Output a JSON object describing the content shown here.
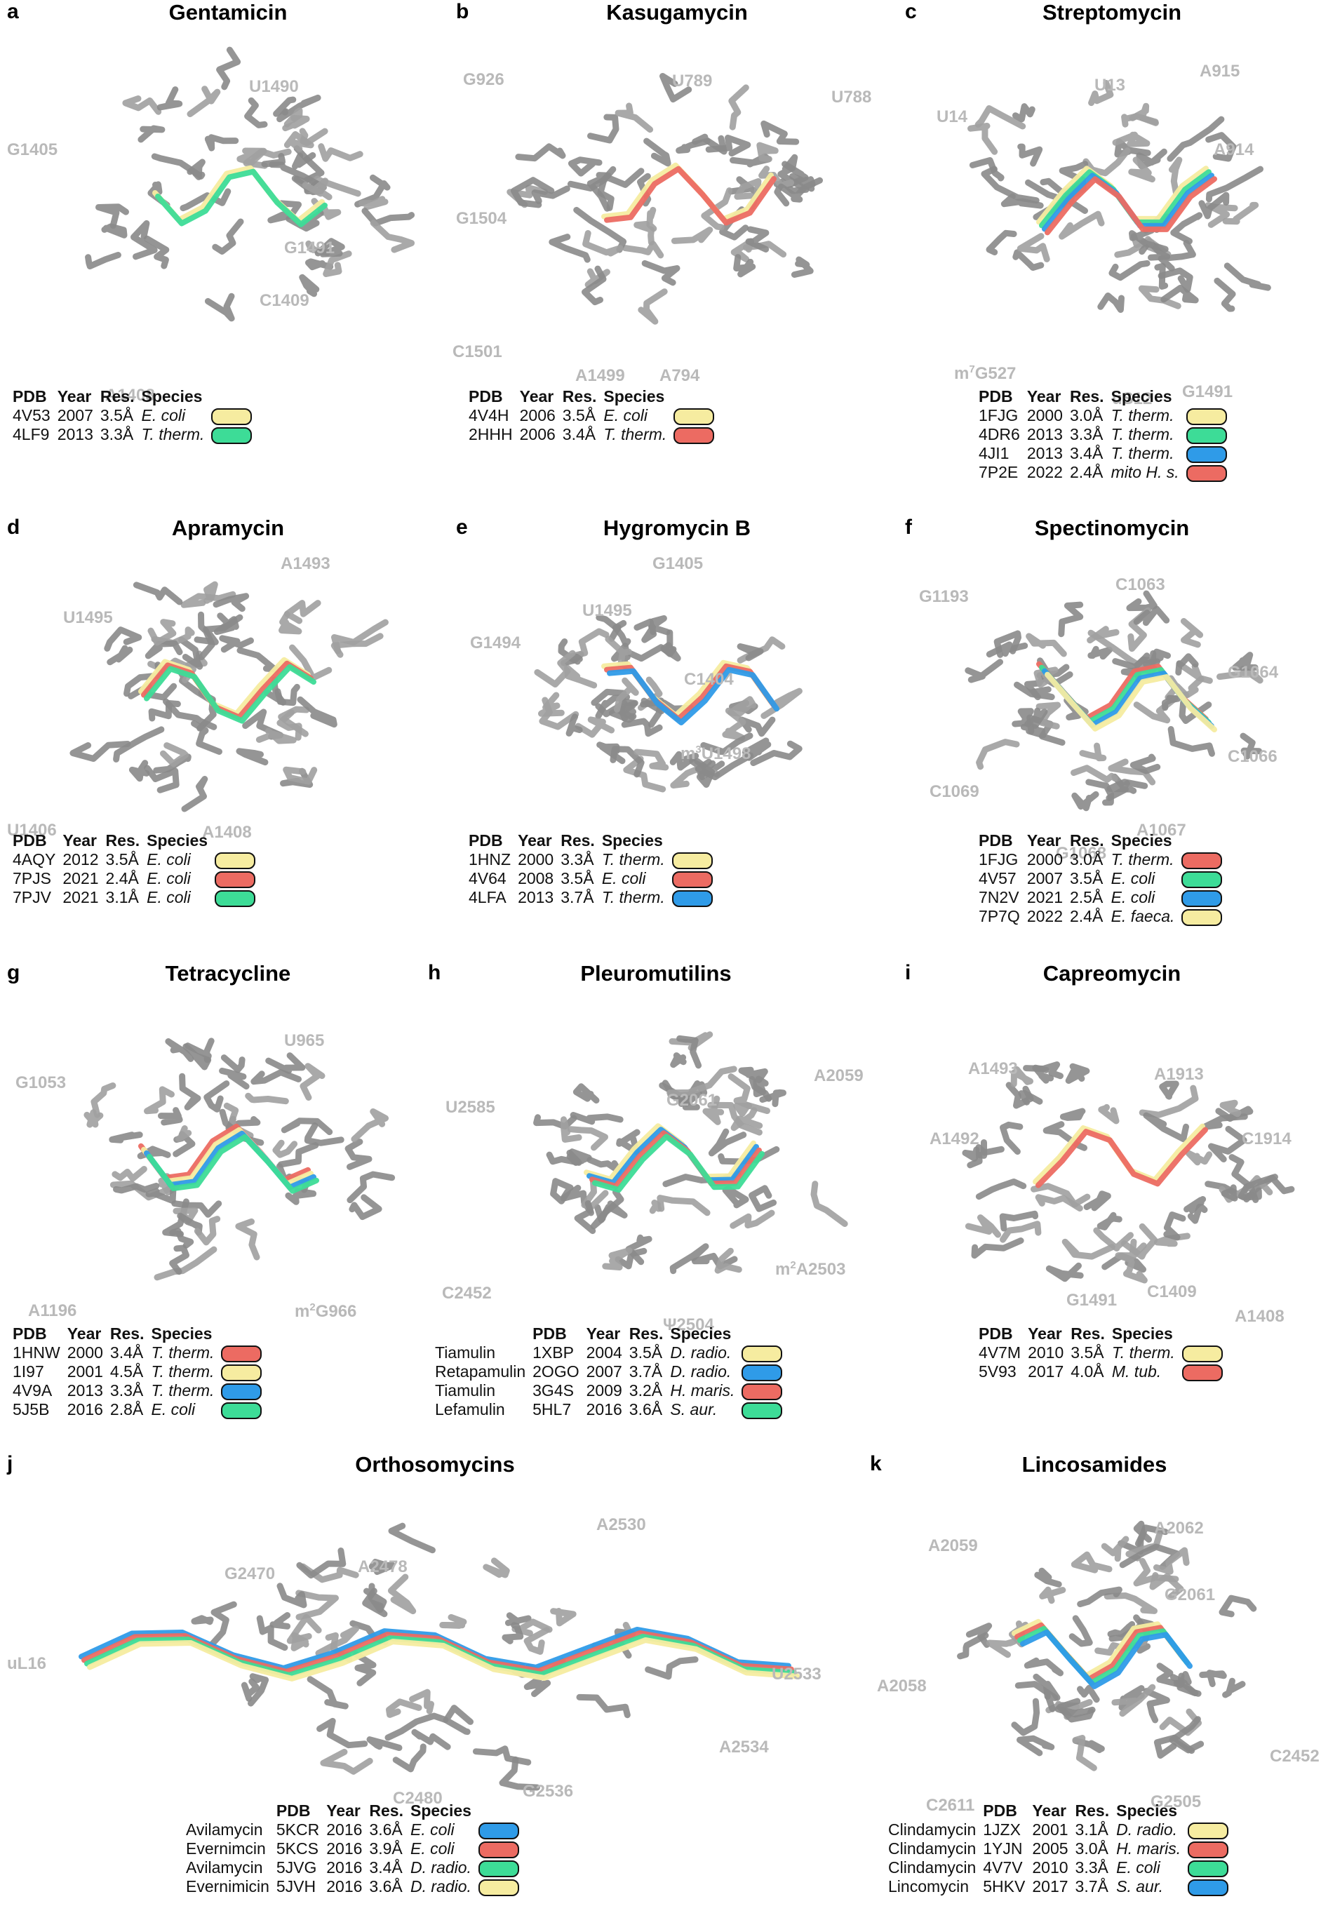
{
  "colors": {
    "yellow": "#f6eca0",
    "green": "#3ddc97",
    "blue": "#2f9be8",
    "red": "#ec6b62",
    "grey_residue": "#8a8a8a",
    "label_grey": "#b9b9b9"
  },
  "legend_headers": {
    "pdb": "PDB",
    "year": "Year",
    "res": "Res.",
    "species": "Species"
  },
  "panels": [
    {
      "id": "a",
      "letter": "a",
      "title": "Gentamicin",
      "residues": [
        "G1405",
        "U1490",
        "G1491",
        "C1409",
        "A1408"
      ],
      "has_name_col": false,
      "entries": [
        {
          "pdb": "4V53",
          "year": "2007",
          "res": "3.5Å",
          "species": "E. coli",
          "color": "yellow"
        },
        {
          "pdb": "4LF9",
          "year": "2013",
          "res": "3.3Å",
          "species": "T. therm.",
          "color": "green"
        }
      ]
    },
    {
      "id": "b",
      "letter": "b",
      "title": "Kasugamycin",
      "residues": [
        "G926",
        "U789",
        "U788",
        "G1504",
        "C1501",
        "A1499",
        "A794"
      ],
      "has_name_col": false,
      "entries": [
        {
          "pdb": "4V4H",
          "year": "2006",
          "res": "3.5Å",
          "species": "E. coli",
          "color": "yellow"
        },
        {
          "pdb": "2HHH",
          "year": "2006",
          "res": "3.4Å",
          "species": "T. therm.",
          "color": "red"
        }
      ]
    },
    {
      "id": "c",
      "letter": "c",
      "title": "Streptomycin",
      "residues": [
        "U14",
        "U13",
        "A915",
        "A914",
        "uS12",
        "G1491"
      ],
      "superscript_residues": [
        {
          "pre": "m",
          "sup": "7",
          "post": "G527"
        }
      ],
      "has_name_col": false,
      "entries": [
        {
          "pdb": "1FJG",
          "year": "2000",
          "res": "3.0Å",
          "species": "T. therm.",
          "color": "yellow"
        },
        {
          "pdb": "4DR6",
          "year": "2013",
          "res": "3.3Å",
          "species": "T. therm.",
          "color": "green"
        },
        {
          "pdb": "4JI1",
          "year": "2013",
          "res": "3.4Å",
          "species": "T. therm.",
          "color": "blue"
        },
        {
          "pdb": "7P2E",
          "year": "2022",
          "res": "2.4Å",
          "species": "mito H. s.",
          "color": "red"
        }
      ]
    },
    {
      "id": "d",
      "letter": "d",
      "title": "Apramycin",
      "residues": [
        "A1493",
        "U1495",
        "U1406",
        "A1408"
      ],
      "has_name_col": false,
      "entries": [
        {
          "pdb": "4AQY",
          "year": "2012",
          "res": "3.5Å",
          "species": "E. coli",
          "color": "yellow"
        },
        {
          "pdb": "7PJS",
          "year": "2021",
          "res": "2.4Å",
          "species": "E. coli",
          "color": "red"
        },
        {
          "pdb": "7PJV",
          "year": "2021",
          "res": "3.1Å",
          "species": "E. coli",
          "color": "green"
        }
      ]
    },
    {
      "id": "e",
      "letter": "e",
      "title": "Hygromycin B",
      "residues": [
        "G1405",
        "U1495",
        "G1494",
        "C1404"
      ],
      "superscript_residues": [
        {
          "pre": "m",
          "sup": "3",
          "post": "U1498"
        }
      ],
      "has_name_col": false,
      "entries": [
        {
          "pdb": "1HNZ",
          "year": "2000",
          "res": "3.3Å",
          "species": "T. therm.",
          "color": "yellow"
        },
        {
          "pdb": "4V64",
          "year": "2008",
          "res": "3.5Å",
          "species": "E. coli",
          "color": "red"
        },
        {
          "pdb": "4LFA",
          "year": "2013",
          "res": "3.7Å",
          "species": "T. therm.",
          "color": "blue"
        }
      ]
    },
    {
      "id": "f",
      "letter": "f",
      "title": "Spectinomycin",
      "residues": [
        "G1193",
        "C1063",
        "G1064",
        "C1066",
        "C1069",
        "A1067",
        "G1068"
      ],
      "has_name_col": false,
      "entries": [
        {
          "pdb": "1FJG",
          "year": "2000",
          "res": "3.0Å",
          "species": "T. therm.",
          "color": "red"
        },
        {
          "pdb": "4V57",
          "year": "2007",
          "res": "3.5Å",
          "species": "E. coli",
          "color": "green"
        },
        {
          "pdb": "7N2V",
          "year": "2021",
          "res": "2.5Å",
          "species": "E. coli",
          "color": "blue"
        },
        {
          "pdb": "7P7Q",
          "year": "2022",
          "res": "2.4Å",
          "species": "E. faeca.",
          "color": "yellow"
        }
      ]
    },
    {
      "id": "g",
      "letter": "g",
      "title": "Tetracycline",
      "residues": [
        "U965",
        "G1053",
        "A1196"
      ],
      "superscript_residues": [
        {
          "pre": "m",
          "sup": "2",
          "post": "G966"
        }
      ],
      "has_name_col": false,
      "entries": [
        {
          "pdb": "1HNW",
          "year": "2000",
          "res": "3.4Å",
          "species": "T. therm.",
          "color": "red"
        },
        {
          "pdb": "1I97",
          "year": "2001",
          "res": "4.5Å",
          "species": "T. therm.",
          "color": "yellow"
        },
        {
          "pdb": "4V9A",
          "year": "2013",
          "res": "3.3Å",
          "species": "T. therm.",
          "color": "blue"
        },
        {
          "pdb": "5J5B",
          "year": "2016",
          "res": "2.8Å",
          "species": "E. coli",
          "color": "green"
        }
      ]
    },
    {
      "id": "h",
      "letter": "h",
      "title": "Pleuromutilins",
      "residues": [
        "A2059",
        "G2061",
        "U2585",
        "C2452",
        "Ψ2504"
      ],
      "superscript_residues": [
        {
          "pre": "m",
          "sup": "2",
          "post": "A2503"
        }
      ],
      "has_name_col": true,
      "entries": [
        {
          "name": "Tiamulin",
          "pdb": "1XBP",
          "year": "2004",
          "res": "3.5Å",
          "species": "D. radio.",
          "color": "yellow"
        },
        {
          "name": "Retapamulin",
          "pdb": "2OGO",
          "year": "2007",
          "res": "3.7Å",
          "species": "D. radio.",
          "color": "blue"
        },
        {
          "name": "Tiamulin",
          "pdb": "3G4S",
          "year": "2009",
          "res": "3.2Å",
          "species": "H. maris.",
          "color": "red"
        },
        {
          "name": "Lefamulin",
          "pdb": "5HL7",
          "year": "2016",
          "res": "3.6Å",
          "species": "S. aur.",
          "color": "green"
        }
      ]
    },
    {
      "id": "i",
      "letter": "i",
      "title": "Capreomycin",
      "residues": [
        "A1493",
        "A1913",
        "A1492",
        "C1914",
        "G1491",
        "C1409",
        "A1408"
      ],
      "has_name_col": false,
      "entries": [
        {
          "pdb": "4V7M",
          "year": "2010",
          "res": "3.5Å",
          "species": "T. therm.",
          "color": "yellow"
        },
        {
          "pdb": "5V93",
          "year": "2017",
          "res": "4.0Å",
          "species": "M. tub.",
          "color": "red"
        }
      ]
    },
    {
      "id": "j",
      "letter": "j",
      "title": "Orthosomycins",
      "residues": [
        "A2530",
        "G2470",
        "A2478",
        "uL16",
        "U2533",
        "A2534",
        "C2480",
        "G2536"
      ],
      "has_name_col": true,
      "entries": [
        {
          "name": "Avilamycin",
          "pdb": "5KCR",
          "year": "2016",
          "res": "3.6Å",
          "species": "E. coli",
          "color": "blue"
        },
        {
          "name": "Evernimcin",
          "pdb": "5KCS",
          "year": "2016",
          "res": "3.9Å",
          "species": "E. coli",
          "color": "red"
        },
        {
          "name": "Avilamycin",
          "pdb": "5JVG",
          "year": "2016",
          "res": "3.4Å",
          "species": "D. radio.",
          "color": "green"
        },
        {
          "name": "Evernimicin",
          "pdb": "5JVH",
          "year": "2016",
          "res": "3.6Å",
          "species": "D. radio.",
          "color": "yellow"
        }
      ]
    },
    {
      "id": "k",
      "letter": "k",
      "title": "Lincosamides",
      "residues": [
        "A2062",
        "A2059",
        "G2061",
        "A2058",
        "C2452",
        "G2505",
        "C2611"
      ],
      "has_name_col": true,
      "entries": [
        {
          "name": "Clindamycin",
          "pdb": "1JZX",
          "year": "2001",
          "res": "3.1Å",
          "species": "D. radio.",
          "color": "yellow"
        },
        {
          "name": "Clindamycin",
          "pdb": "1YJN",
          "year": "2005",
          "res": "3.0Å",
          "species": "H. maris.",
          "color": "red"
        },
        {
          "name": "Clindamycin",
          "pdb": "4V7V",
          "year": "2010",
          "res": "3.3Å",
          "species": "E. coli",
          "color": "green"
        },
        {
          "name": "Lincomycin",
          "pdb": "5HKV",
          "year": "2017",
          "res": "3.7Å",
          "species": "S. aur.",
          "color": "blue"
        }
      ]
    }
  ]
}
